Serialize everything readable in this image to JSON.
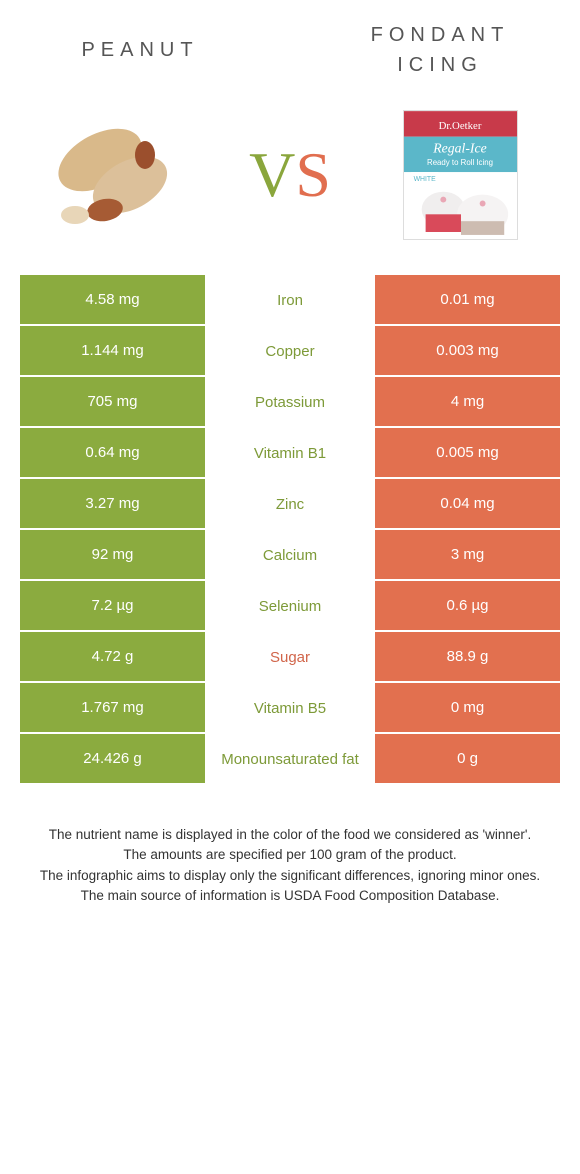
{
  "colors": {
    "green": "#8bab3f",
    "orange": "#e2704f",
    "mid_green_text": "#7d9a38",
    "mid_orange_text": "#d1654a"
  },
  "header": {
    "left": "Peanut",
    "right_line1": "Fondant",
    "right_line2": "icing"
  },
  "vs": {
    "v": "V",
    "s": "S"
  },
  "rows": [
    {
      "left": "4.58 mg",
      "mid": "Iron",
      "right": "0.01 mg",
      "winner": "left"
    },
    {
      "left": "1.144 mg",
      "mid": "Copper",
      "right": "0.003 mg",
      "winner": "left"
    },
    {
      "left": "705 mg",
      "mid": "Potassium",
      "right": "4 mg",
      "winner": "left"
    },
    {
      "left": "0.64 mg",
      "mid": "Vitamin B1",
      "right": "0.005 mg",
      "winner": "left"
    },
    {
      "left": "3.27 mg",
      "mid": "Zinc",
      "right": "0.04 mg",
      "winner": "left"
    },
    {
      "left": "92 mg",
      "mid": "Calcium",
      "right": "3 mg",
      "winner": "left"
    },
    {
      "left": "7.2 µg",
      "mid": "Selenium",
      "right": "0.6 µg",
      "winner": "left"
    },
    {
      "left": "4.72 g",
      "mid": "Sugar",
      "right": "88.9 g",
      "winner": "right"
    },
    {
      "left": "1.767 mg",
      "mid": "Vitamin B5",
      "right": "0 mg",
      "winner": "left"
    },
    {
      "left": "24.426 g",
      "mid": "Monounsaturated fat",
      "right": "0 g",
      "winner": "left"
    }
  ],
  "notes": [
    "The nutrient name is displayed in the color of the food we considered as 'winner'.",
    "The amounts are specified per 100 gram of the product.",
    "The infographic aims to display only the significant differences, ignoring minor ones.",
    "The main source of information is USDA Food Composition Database."
  ]
}
